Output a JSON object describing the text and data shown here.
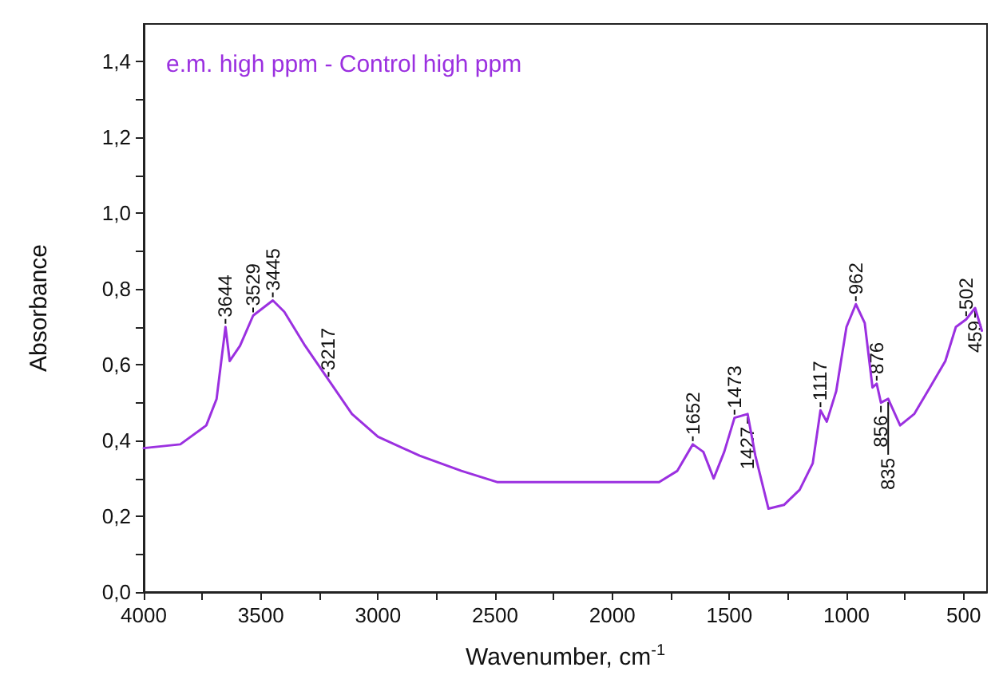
{
  "chart_data": {
    "type": "line",
    "title": "e.m. high ppm - Control high ppm",
    "xlabel": "Wavenumber, cm$^{-1}$",
    "ylabel": "Absorbance",
    "xlim": [
      4000,
      400
    ],
    "ylim": [
      0,
      1.5
    ],
    "xticks": [
      4000,
      {
        "value": 3750,
        "label": null
      },
      3500,
      {
        "value": 3250,
        "label": null
      },
      3000,
      {
        "value": 2750,
        "label": null
      },
      2500,
      {
        "value": 2250,
        "label": null
      },
      2000,
      {
        "value": 1750,
        "label": null
      },
      1500,
      {
        "value": 1250,
        "label": null
      },
      1000,
      {
        "value": 750,
        "label": null
      },
      500
    ],
    "yticks": [
      {
        "value": 0,
        "label": "0,0"
      },
      {
        "value": 0.1,
        "label": null
      },
      {
        "value": 0.2,
        "label": "0,2"
      },
      {
        "value": 0.3,
        "label": null
      },
      {
        "value": 0.4,
        "label": "0,4"
      },
      {
        "value": 0.5,
        "label": null
      },
      {
        "value": 0.6,
        "label": "0,6"
      },
      {
        "value": 0.7,
        "label": null
      },
      {
        "value": 0.8,
        "label": "0,8"
      },
      {
        "value": 0.9,
        "label": null
      },
      {
        "value": 1.0,
        "label": "1,0"
      },
      {
        "value": 1.1,
        "label": null
      },
      {
        "value": 1.2,
        "label": "1,2"
      },
      {
        "value": 1.3,
        "label": null
      },
      {
        "value": 1.4,
        "label": "1,4"
      }
    ],
    "grid": false,
    "marker": "none",
    "line_style": "solid",
    "series": [
      {
        "color": "#9b30e0",
        "x": [
          4000,
          3844,
          3733,
          3689,
          3651,
          3633,
          3589,
          3533,
          3449,
          3400,
          3311,
          3211,
          3111,
          3000,
          2822,
          2644,
          2489,
          2200,
          1800,
          1722,
          1656,
          1611,
          1567,
          1522,
          1478,
          1422,
          1389,
          1333,
          1267,
          1200,
          1144,
          1111,
          1084,
          1044,
          1000,
          960,
          922,
          889,
          871,
          853,
          822,
          771,
          711,
          644,
          578,
          533,
          489,
          451,
          422
        ],
        "values": [
          0.38,
          0.39,
          0.44,
          0.51,
          0.7,
          0.61,
          0.65,
          0.73,
          0.77,
          0.74,
          0.65,
          0.56,
          0.47,
          0.41,
          0.36,
          0.32,
          0.29,
          0.29,
          0.29,
          0.32,
          0.39,
          0.37,
          0.3,
          0.37,
          0.46,
          0.47,
          0.36,
          0.22,
          0.23,
          0.27,
          0.34,
          0.48,
          0.45,
          0.53,
          0.7,
          0.76,
          0.71,
          0.54,
          0.55,
          0.5,
          0.51,
          0.44,
          0.47,
          0.54,
          0.61,
          0.7,
          0.72,
          0.75,
          0.69
        ]
      }
    ],
    "annotations": [
      {
        "text": "3644",
        "x": 3651,
        "y": 0.7
      },
      {
        "text": "3529",
        "x": 3533,
        "y": 0.73
      },
      {
        "text": "3445",
        "x": 3449,
        "y": 0.77
      },
      {
        "text": "3217",
        "x": 3211,
        "y": 0.56
      },
      {
        "text": "1652",
        "x": 1656,
        "y": 0.39
      },
      {
        "text": "1473",
        "x": 1478,
        "y": 0.46
      },
      {
        "text": "1427",
        "x": 1422,
        "y": 0.47
      },
      {
        "text": "1117",
        "x": 1111,
        "y": 0.48
      },
      {
        "text": "962",
        "x": 960,
        "y": 0.76
      },
      {
        "text": "876",
        "x": 871,
        "y": 0.55
      },
      {
        "text": "856",
        "x": 853,
        "y": 0.5
      },
      {
        "text": "835",
        "x": 822,
        "y": 0.51
      },
      {
        "text": "502",
        "x": 489,
        "y": 0.72
      },
      {
        "text": "459",
        "x": 451,
        "y": 0.75
      }
    ]
  }
}
